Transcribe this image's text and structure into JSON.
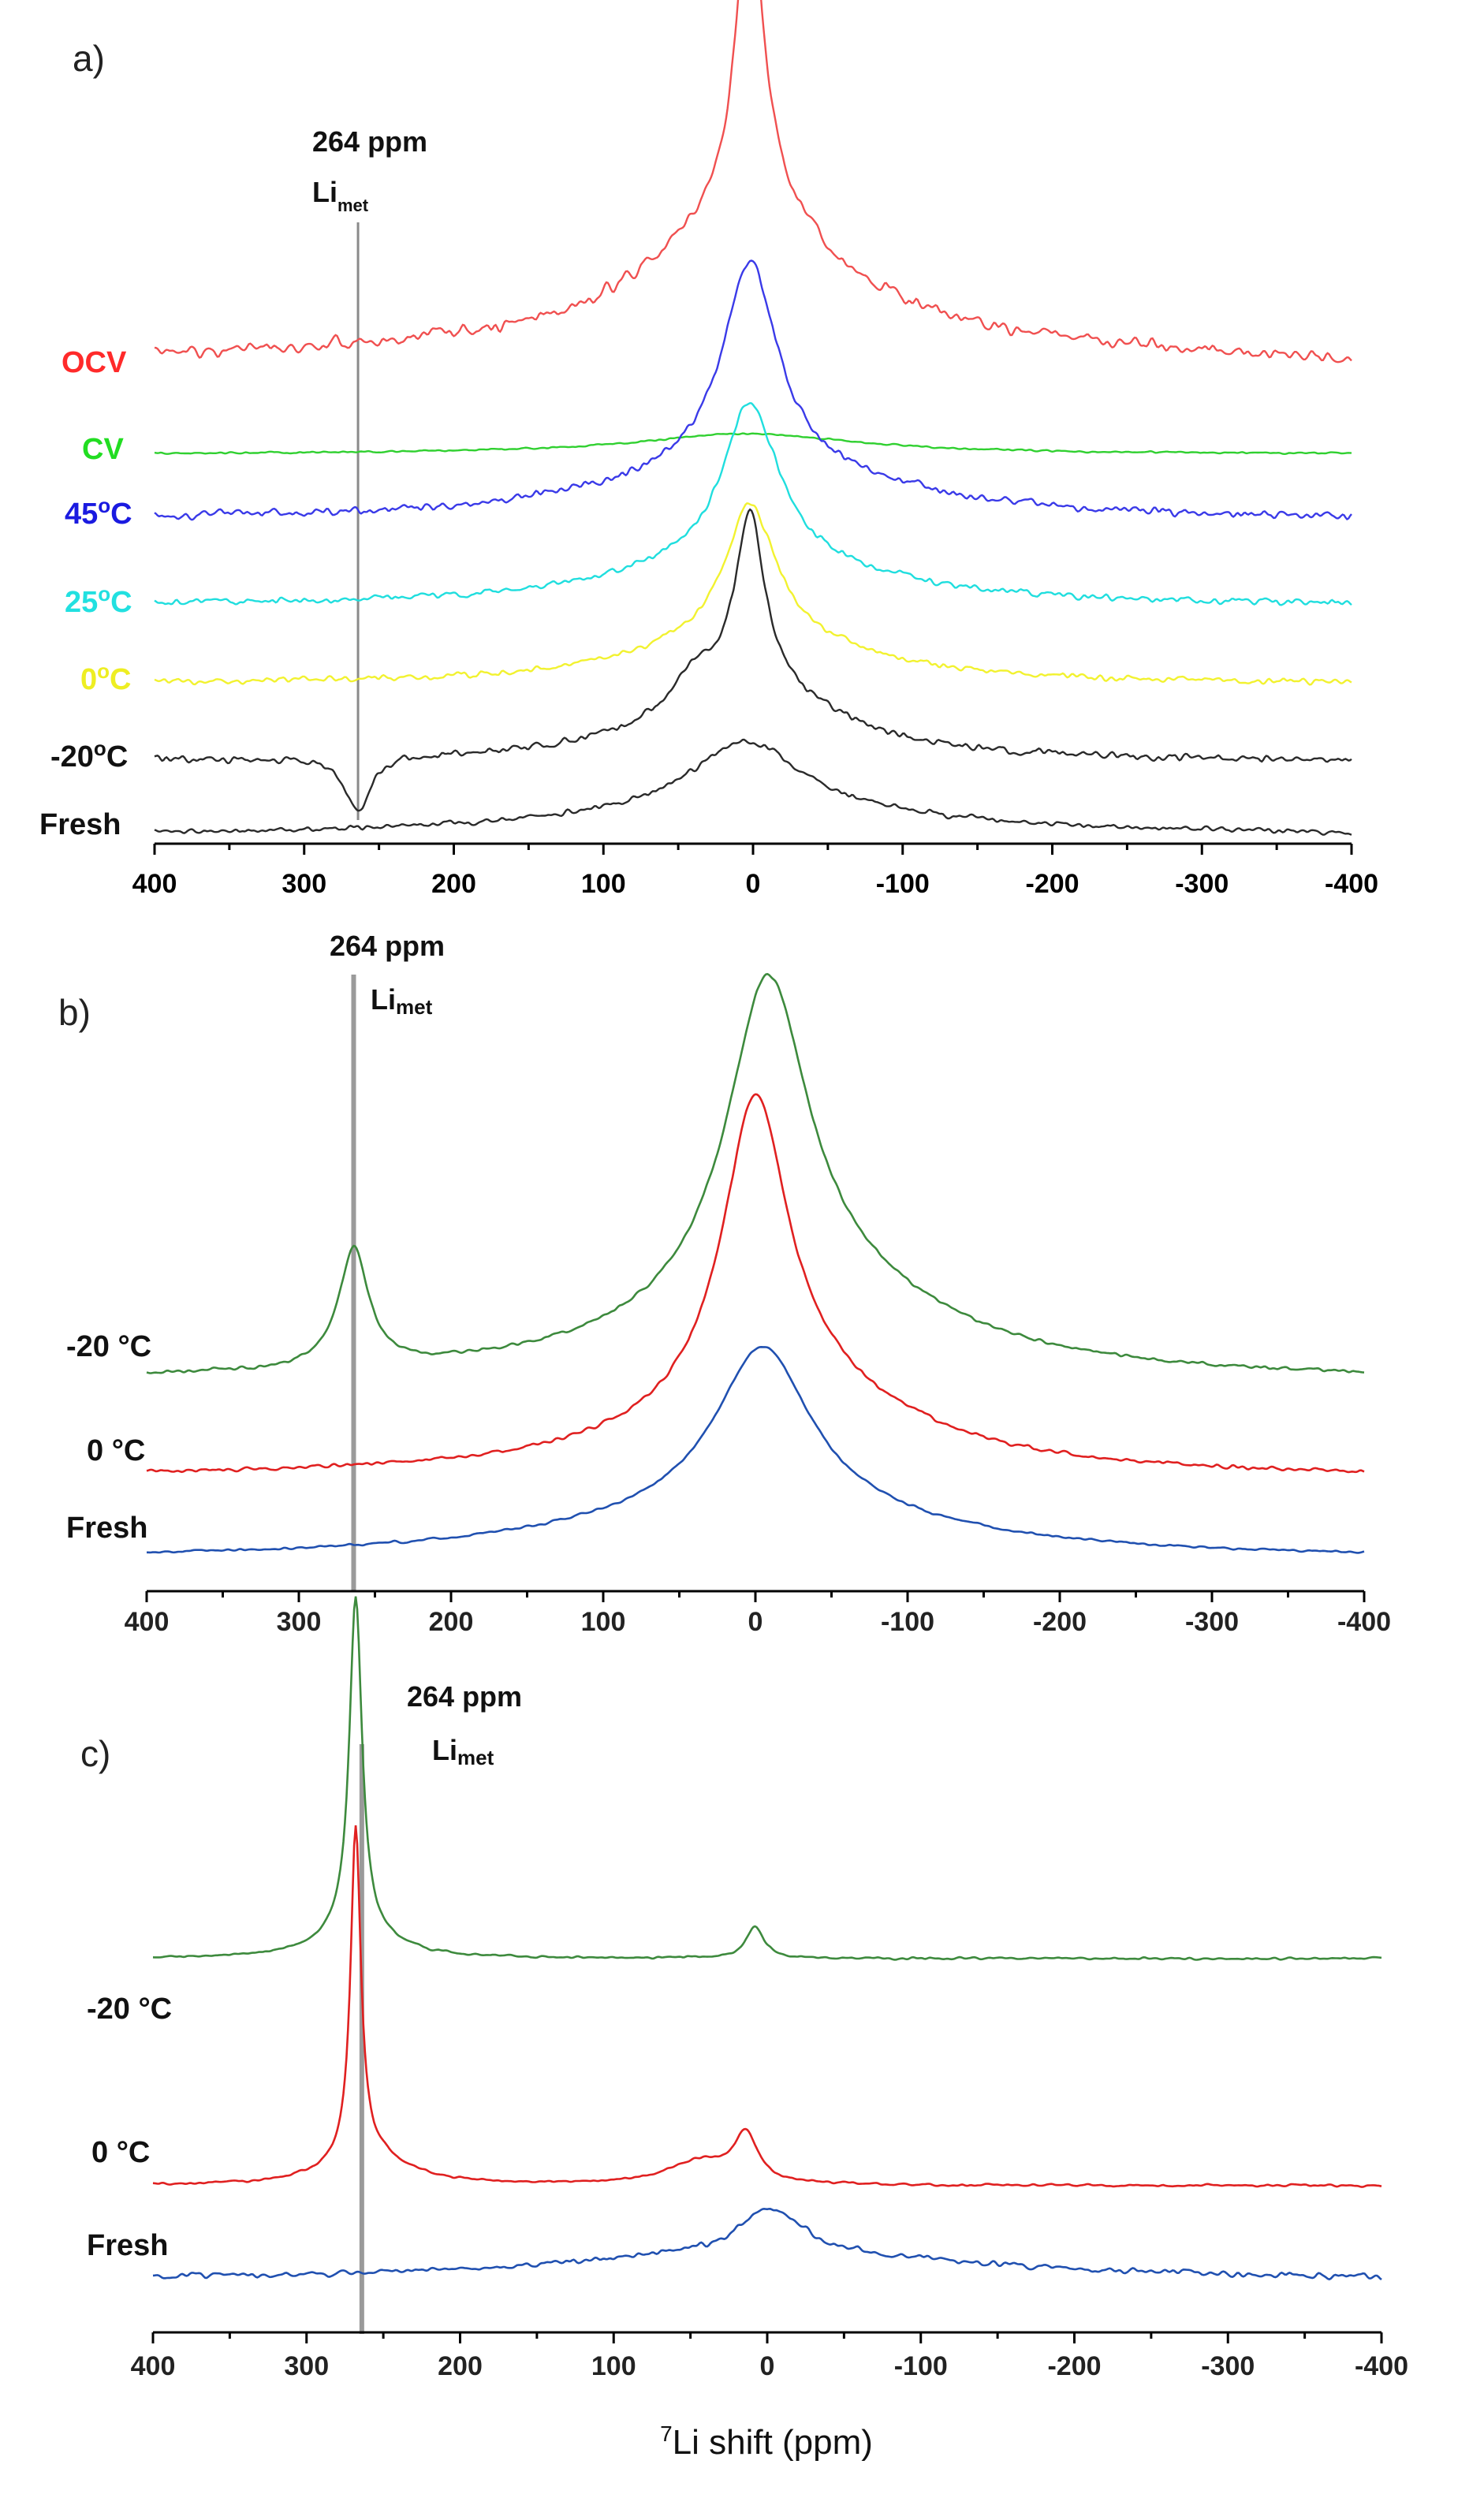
{
  "chart_data": [
    {
      "panel": "a)",
      "type": "line",
      "xlim": [
        400,
        -400
      ],
      "xticks": [
        "400",
        "300",
        "200",
        "100",
        "0",
        "-100",
        "-200",
        "-300",
        "-400"
      ],
      "annotation": {
        "label": "264 ppm",
        "sublabel_main": "Li",
        "sublabel_sub": "met",
        "x": 264
      },
      "series": [
        {
          "name": "OCV",
          "color": "#f05050",
          "label_color": "#ff2a2a"
        },
        {
          "name": "CV",
          "color": "#30d030",
          "label_color": "#22dd22"
        },
        {
          "name": "45°C",
          "label_main": "45",
          "label_unit": "C",
          "color": "#3a3ae8",
          "label_color": "#1a1ae0"
        },
        {
          "name": "25°C",
          "label_main": "25",
          "label_unit": "C",
          "color": "#20dede",
          "label_color": "#22e0e0"
        },
        {
          "name": "0°C",
          "label_main": "0",
          "label_unit": "C",
          "color": "#f2f230",
          "label_color": "#eeee22"
        },
        {
          "name": "-20°C",
          "label_main": "-20",
          "label_unit": "C",
          "color": "#2a2a2a",
          "label_color": "#111111"
        },
        {
          "name": "Fresh",
          "color": "#2a2a2a",
          "label_color": "#111111"
        }
      ]
    },
    {
      "panel": "b)",
      "type": "line",
      "xlim": [
        400,
        -400
      ],
      "xticks": [
        "400",
        "300",
        "200",
        "100",
        "0",
        "-100",
        "-200",
        "-300",
        "-400"
      ],
      "annotation": {
        "label": "264 ppm",
        "sublabel_main": "Li",
        "sublabel_sub": "met",
        "x": 264
      },
      "series": [
        {
          "name": "-20 °C",
          "color": "#3d8a3d"
        },
        {
          "name": "0 °C",
          "color": "#e02020"
        },
        {
          "name": "Fresh",
          "color": "#2050b0"
        }
      ]
    },
    {
      "panel": "c)",
      "type": "line",
      "xlim": [
        400,
        -400
      ],
      "xticks": [
        "400",
        "300",
        "200",
        "100",
        "0",
        "-100",
        "-200",
        "-300",
        "-400"
      ],
      "xlabel_main": "Li shift (ppm)",
      "xlabel_sup": "7",
      "annotation": {
        "label": "264 ppm",
        "sublabel_main": "Li",
        "sublabel_sub": "met",
        "x": 264
      },
      "series": [
        {
          "name": "-20 °C",
          "color": "#3d8a3d"
        },
        {
          "name": "0 °C",
          "color": "#e02020"
        },
        {
          "name": "Fresh",
          "color": "#2050b0"
        }
      ]
    }
  ]
}
